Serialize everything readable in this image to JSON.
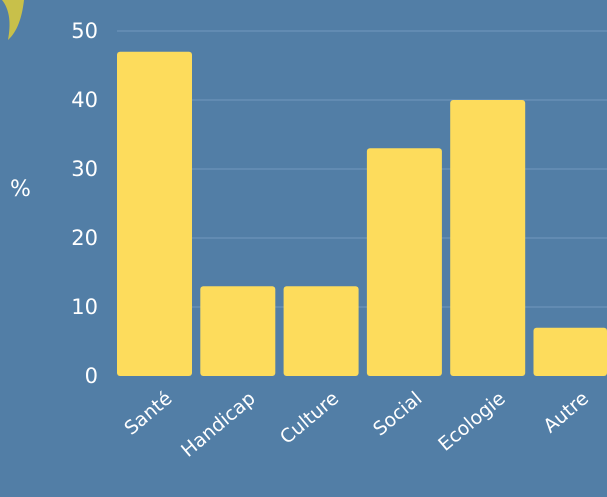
{
  "chart_data": {
    "type": "bar",
    "categories": [
      "Santé",
      "Handicap",
      "Culture",
      "Social",
      "Ecologie",
      "Autre"
    ],
    "values": [
      47,
      13,
      13,
      33,
      40,
      7
    ],
    "title": "",
    "xlabel": "",
    "ylabel": "%",
    "ylim": [
      0,
      50
    ],
    "yticks": [
      0,
      10,
      20,
      30,
      40,
      50
    ],
    "grid": true,
    "legend": "none"
  },
  "colors": {
    "background": "#527ea6",
    "bar": "#fddc5c",
    "grid": "#7198bd",
    "text": "#ffffff",
    "decor": "#c8c04a"
  }
}
